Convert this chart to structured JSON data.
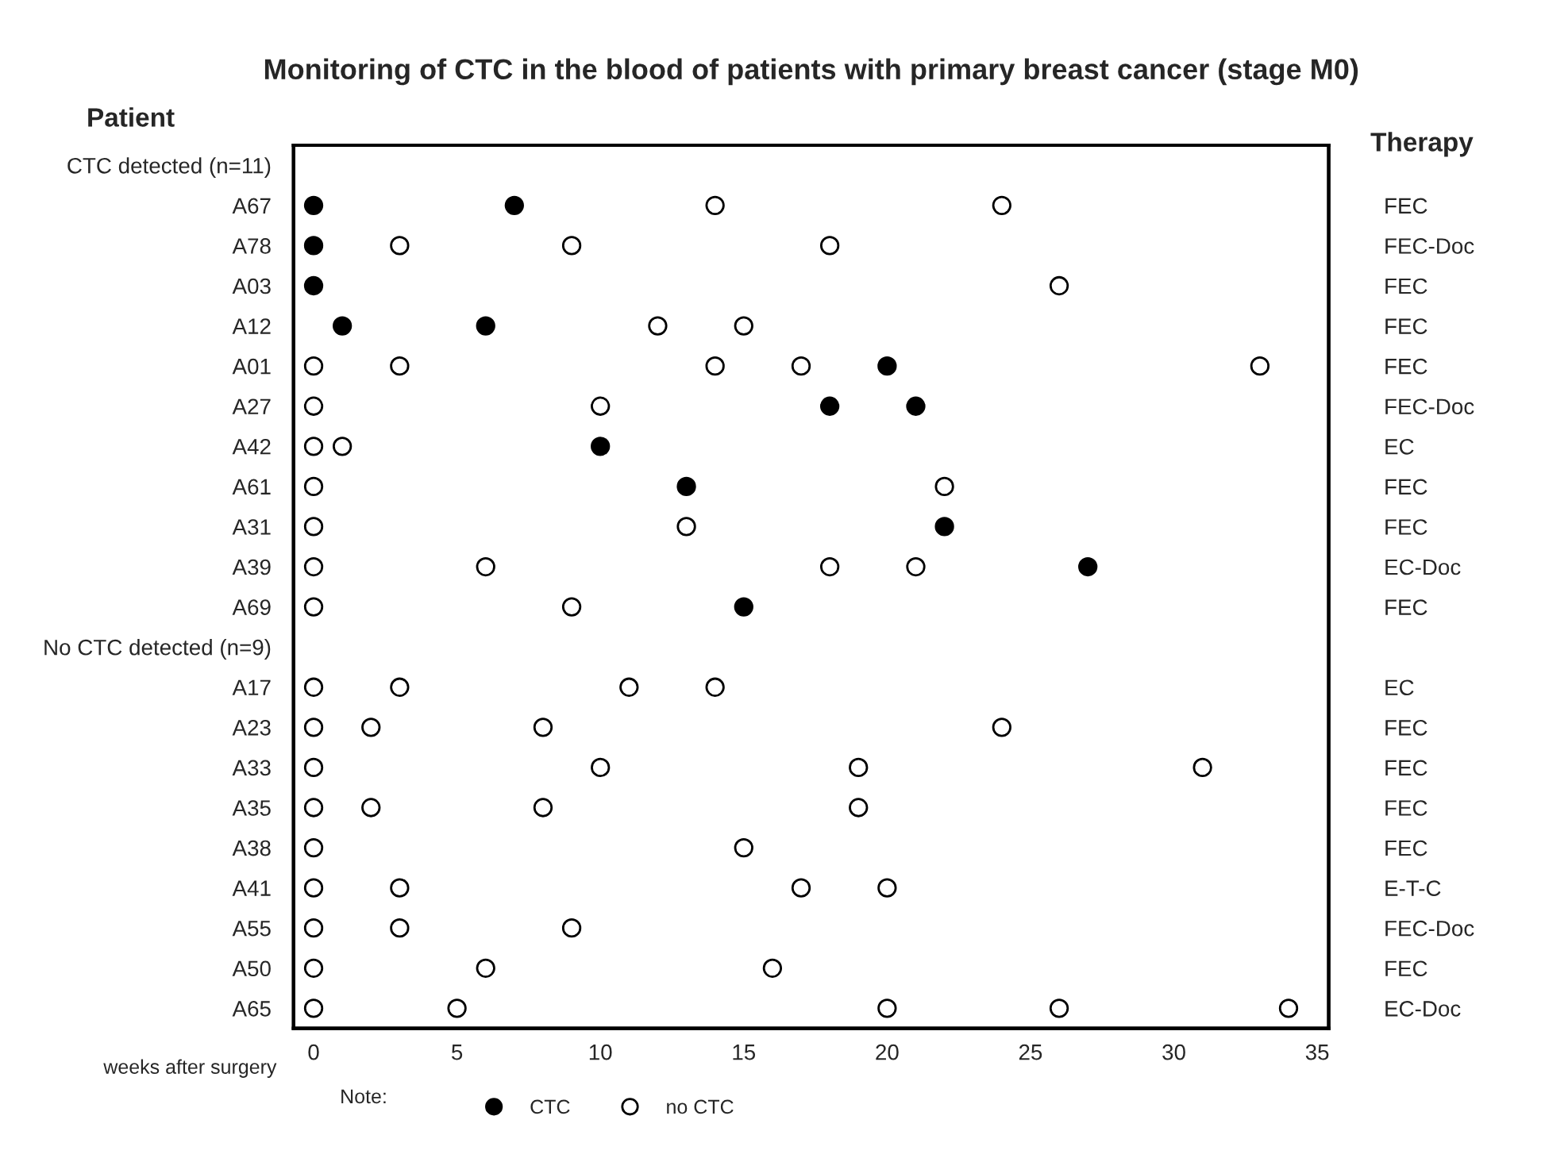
{
  "chart_data": {
    "type": "scatter",
    "orientation": "horizontal",
    "title": "Monitoring of CTC in the blood of patients with primary breast cancer (stage M0)",
    "ylabel": "Patient",
    "y2label": "Therapy",
    "xlabel": "weeks after surgery",
    "categories": [
      "CTC detected (n=11)",
      "A67",
      "A78",
      "A03",
      "A12",
      "A01",
      "A27",
      "A42",
      "A61",
      "A31",
      "A39",
      "A69",
      "No CTC detected (n=9)",
      "A17",
      "A23",
      "A33",
      "A35",
      "A38",
      "A41",
      "A55",
      "A50",
      "A65"
    ],
    "y2_categories": [
      null,
      "FEC",
      "FEC-Doc",
      "FEC",
      "FEC",
      "FEC",
      "FEC-Doc",
      "EC",
      "FEC",
      "FEC",
      "EC-Doc",
      "FEC",
      null,
      "EC",
      "FEC",
      "FEC",
      "FEC",
      "FEC",
      "E-T-C",
      "FEC-Doc",
      "FEC",
      "EC-Doc"
    ],
    "xlim": [
      -0.7,
      35.4
    ],
    "xticks": [
      0,
      5,
      10,
      15,
      20,
      25,
      30,
      35
    ],
    "marker": "circle",
    "legend": "bottom",
    "annotations": [
      "Note:"
    ],
    "series": [
      {
        "name": "CTC",
        "color": "#000000",
        "values": [
          null,
          0,
          0,
          0,
          1,
          20,
          18,
          10,
          13,
          22,
          27,
          15,
          null,
          null,
          null,
          null,
          null,
          null,
          null,
          null,
          null,
          null
        ]
      },
      {
        "color": "#000000",
        "values": [
          null,
          7,
          null,
          null,
          6,
          null,
          21,
          null,
          null,
          null,
          null,
          null,
          null,
          null,
          null,
          null,
          null,
          null,
          null,
          null,
          null,
          null
        ]
      },
      {
        "name": "no CTC",
        "color": "#ffffff",
        "values": [
          null,
          14,
          3,
          26,
          12,
          0,
          0,
          0,
          0,
          0,
          0,
          0,
          null,
          0,
          0,
          0,
          0,
          0,
          0,
          0,
          0,
          0
        ]
      },
      {
        "color": "#ffffff",
        "values": [
          null,
          24,
          9,
          null,
          15,
          3,
          10,
          1,
          22,
          13,
          6,
          9,
          null,
          3,
          2,
          10,
          2,
          15,
          3,
          3,
          6,
          5
        ]
      },
      {
        "color": "#ffffff",
        "values": [
          null,
          null,
          18,
          null,
          null,
          14,
          null,
          null,
          null,
          null,
          18,
          null,
          null,
          11,
          8,
          19,
          8,
          null,
          17,
          9,
          16,
          20
        ]
      },
      {
        "color": "#ffffff",
        "values": [
          null,
          null,
          null,
          null,
          null,
          17,
          null,
          null,
          null,
          null,
          21,
          null,
          null,
          14,
          24,
          31,
          19,
          null,
          20,
          null,
          null,
          26
        ]
      },
      {
        "color": "#ffffff",
        "values": [
          null,
          null,
          null,
          null,
          null,
          33,
          null,
          null,
          null,
          null,
          null,
          null,
          null,
          null,
          null,
          null,
          null,
          null,
          null,
          null,
          null,
          34
        ]
      }
    ]
  }
}
